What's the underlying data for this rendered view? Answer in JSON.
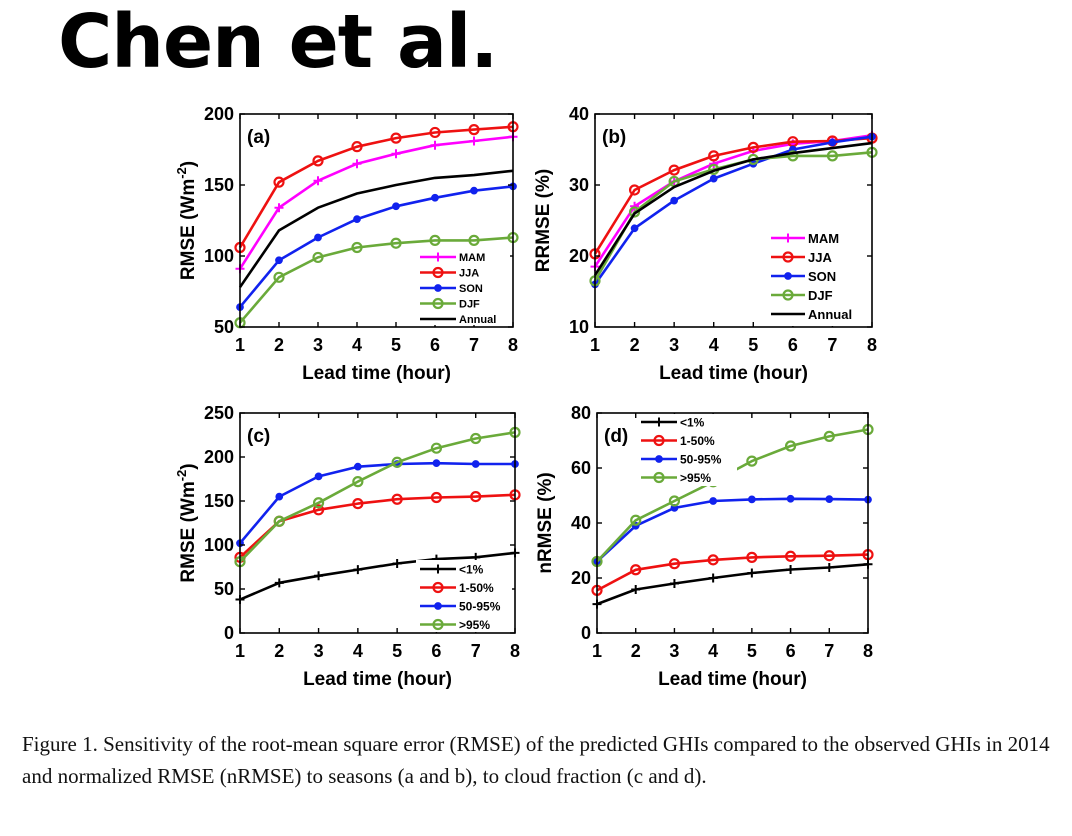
{
  "heading": "Chen et al.",
  "caption": "Figure 1. Sensitivity of the root-mean square error (RMSE) of the predicted GHIs compared to the observed GHIs in 2014 and normalized RMSE (nRMSE) to seasons (a and b), to cloud fraction (c and d).",
  "chart_data": [
    {
      "type": "line",
      "panel": "(a)",
      "xlabel": "Lead time (hour)",
      "ylabel": "RMSE (Wm",
      "ylabel_sup": "-2",
      "ylabel_end": ")",
      "x": [
        1,
        2,
        3,
        4,
        5,
        6,
        7,
        8
      ],
      "ylim": [
        50,
        200
      ],
      "yticks": [
        50,
        100,
        150,
        200
      ],
      "legend": "bottom-right",
      "series": [
        {
          "name": "MAM",
          "color": "#ff00ff",
          "marker": "plus",
          "values": [
            91,
            134,
            153,
            165,
            172,
            178,
            181,
            184
          ]
        },
        {
          "name": "JJA",
          "color": "#ee1111",
          "marker": "circle",
          "values": [
            106,
            152,
            167,
            177,
            183,
            187,
            189,
            191
          ]
        },
        {
          "name": "SON",
          "color": "#1122ee",
          "marker": "dot",
          "values": [
            64,
            97,
            113,
            126,
            135,
            141,
            146,
            149
          ]
        },
        {
          "name": "DJF",
          "color": "#6aaa3a",
          "marker": "circle",
          "values": [
            53,
            85,
            99,
            106,
            109,
            111,
            111,
            113
          ]
        },
        {
          "name": "Annual",
          "color": "#000000",
          "marker": "none",
          "values": [
            78,
            118,
            134,
            144,
            150,
            155,
            157,
            160
          ]
        }
      ]
    },
    {
      "type": "line",
      "panel": "(b)",
      "xlabel": "Lead time (hour)",
      "ylabel": "RRMSE (%)",
      "x": [
        1,
        2,
        3,
        4,
        5,
        6,
        7,
        8
      ],
      "ylim": [
        10,
        40
      ],
      "yticks": [
        10,
        20,
        30,
        40
      ],
      "legend": "bottom-right",
      "series": [
        {
          "name": "MAM",
          "color": "#ff00ff",
          "marker": "plus",
          "values": [
            18.5,
            27,
            30.5,
            33,
            34.8,
            35.8,
            36.2,
            37
          ]
        },
        {
          "name": "JJA",
          "color": "#ee1111",
          "marker": "circle",
          "values": [
            20.3,
            29.3,
            32.1,
            34.1,
            35.3,
            36.1,
            36.2,
            36.6
          ]
        },
        {
          "name": "SON",
          "color": "#1122ee",
          "marker": "dot",
          "values": [
            16,
            23.9,
            27.8,
            30.9,
            33,
            35,
            36,
            36.8
          ]
        },
        {
          "name": "DJF",
          "color": "#6aaa3a",
          "marker": "circle",
          "values": [
            16.5,
            26.2,
            30.5,
            32.2,
            33.6,
            34.1,
            34.1,
            34.6
          ]
        },
        {
          "name": "Annual",
          "color": "#000000",
          "marker": "none",
          "values": [
            17.3,
            26,
            29.7,
            32,
            33.6,
            34.5,
            35.2,
            35.9
          ]
        }
      ]
    },
    {
      "type": "line",
      "panel": "(c)",
      "xlabel": "Lead time (hour)",
      "ylabel": "RMSE (Wm",
      "ylabel_sup": "-2",
      "ylabel_end": ")",
      "x": [
        1,
        2,
        3,
        4,
        5,
        6,
        7,
        8
      ],
      "ylim": [
        0,
        250
      ],
      "yticks": [
        0,
        50,
        100,
        150,
        200,
        250
      ],
      "legend": "bottom-right",
      "series": [
        {
          "name": "<1%",
          "color": "#000000",
          "marker": "plus",
          "values": [
            38,
            57,
            65,
            72,
            79,
            84,
            86,
            91
          ]
        },
        {
          "name": "1-50%",
          "color": "#ee1111",
          "marker": "circle",
          "values": [
            86,
            127,
            140,
            147,
            152,
            154,
            155,
            157
          ]
        },
        {
          "name": "50-95%",
          "color": "#1122ee",
          "marker": "dot",
          "values": [
            102,
            155,
            178,
            189,
            192,
            193,
            192,
            192
          ]
        },
        {
          "name": ">95%",
          "color": "#6aaa3a",
          "marker": "circle",
          "values": [
            81,
            127,
            148,
            172,
            194,
            210,
            221,
            228
          ]
        }
      ]
    },
    {
      "type": "line",
      "panel": "(d)",
      "xlabel": "Lead time (hour)",
      "ylabel": "nRMSE (%)",
      "x": [
        1,
        2,
        3,
        4,
        5,
        6,
        7,
        8
      ],
      "ylim": [
        0,
        80
      ],
      "yticks": [
        0,
        20,
        40,
        60,
        80
      ],
      "legend": "top-left",
      "series": [
        {
          "name": "<1%",
          "color": "#000000",
          "marker": "plus",
          "values": [
            10.5,
            15.8,
            18,
            20,
            21.8,
            23.1,
            23.8,
            25
          ]
        },
        {
          "name": "1-50%",
          "color": "#ee1111",
          "marker": "circle",
          "values": [
            15.5,
            23,
            25.2,
            26.6,
            27.5,
            27.9,
            28.1,
            28.5
          ]
        },
        {
          "name": "50-95%",
          "color": "#1122ee",
          "marker": "dot",
          "values": [
            26,
            39,
            45.5,
            48,
            48.6,
            48.8,
            48.7,
            48.5
          ]
        },
        {
          "name": ">95%",
          "color": "#6aaa3a",
          "marker": "circle",
          "values": [
            26,
            41,
            48,
            55,
            62.5,
            68,
            71.5,
            74
          ]
        }
      ]
    }
  ]
}
